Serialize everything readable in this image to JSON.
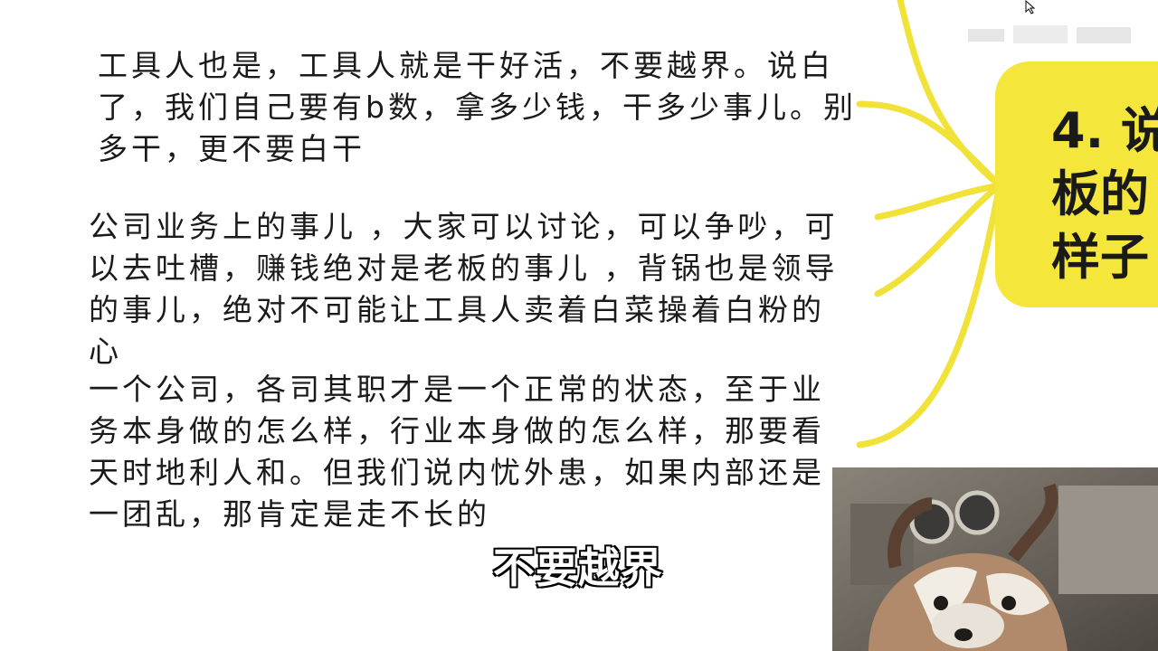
{
  "paragraphs": [
    "工具人也是，工具人就是干好活，不要越界。说白了，我们自己要有b数，拿多少钱，干多少事儿。别多干，更不要白干",
    "公司业务上的事儿 ，大家可以讨论，可以争吵，可以去吐槽，赚钱绝对是老板的事儿 ，背锅也是领导的事儿，绝对不可能让工具人卖着白菜操着白粉的心",
    "一个公司，各司其职才是一个正常的状态，至于业务本身做的怎么样，行业本身做的怎么样，那要看天时地利人和。但我们说内忧外患，如果内部还是一团乱，那肯定是走不长的"
  ],
  "mindmap": {
    "topic": "4. 说\n板的\n样子",
    "node_color": "#f4e63a",
    "line_color": "#f1e23a"
  },
  "caption": "不要越界",
  "overlay": {
    "description_icon": "red-panda-image"
  }
}
